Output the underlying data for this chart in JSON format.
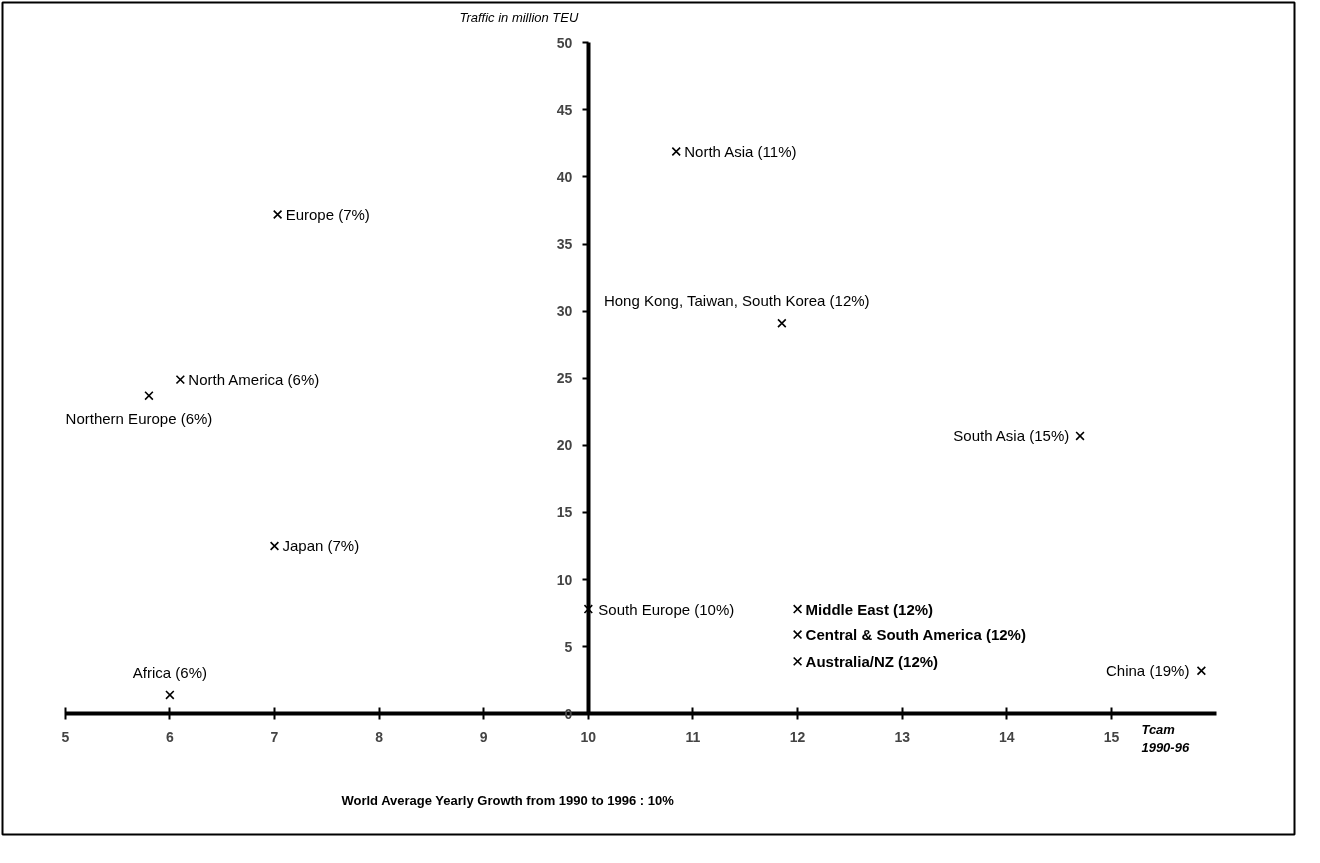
{
  "chart_data": {
    "type": "scatter",
    "xlabel": "Tcam\n1990-96",
    "ylabel": "Traffic in million TEU",
    "x": [
      10.84,
      7.03,
      11.85,
      6.1,
      5.8,
      14.7,
      7.0,
      10.0,
      12.0,
      12.0,
      12.0,
      15.86,
      6.0
    ],
    "values": [
      41.9,
      37.2,
      29.1,
      24.9,
      23.7,
      20.7,
      12.5,
      7.8,
      7.8,
      5.9,
      3.9,
      3.2,
      1.4
    ],
    "color": "#000000",
    "marker": "cross",
    "xlim": [
      5,
      16
    ],
    "xticks": [
      5,
      6,
      7,
      8,
      9,
      10,
      11,
      12,
      13,
      14,
      15
    ],
    "ylim": [
      0,
      50
    ],
    "yticks": [
      0,
      5,
      10,
      15,
      20,
      25,
      30,
      35,
      40,
      45,
      50
    ],
    "annotations": [
      {
        "text": "North Asia (11%)",
        "x": 10.84,
        "y": 41.9
      },
      {
        "text": "Europe (7%)",
        "x": 7.03,
        "y": 37.2
      },
      {
        "text": "Hong Kong, Taiwan, South Korea (12%)",
        "x": 11.85,
        "y": 29.1
      },
      {
        "text": "North America (6%)",
        "x": 6.1,
        "y": 24.9
      },
      {
        "text": "Northern Europe (6%)",
        "x": 5.8,
        "y": 23.7
      },
      {
        "text": "South Asia (15%)",
        "x": 14.7,
        "y": 20.7
      },
      {
        "text": "Japan (7%)",
        "x": 7.0,
        "y": 12.5
      },
      {
        "text": "South Europe (10%)",
        "x": 10.0,
        "y": 7.8
      },
      {
        "text": "Middle East (12%)",
        "x": 12.0,
        "y": 7.8
      },
      {
        "text": "Central & South America (12%)",
        "x": 12.0,
        "y": 5.9
      },
      {
        "text": "Australia/NZ (12%)",
        "x": 12.0,
        "y": 3.9
      },
      {
        "text": "China (19%)",
        "x": 15.86,
        "y": 3.2
      },
      {
        "text": "Africa (6%)",
        "x": 6.0,
        "y": 1.4
      },
      "World Average Yearly Growth from 1990 to 1996 : 10%"
    ]
  }
}
